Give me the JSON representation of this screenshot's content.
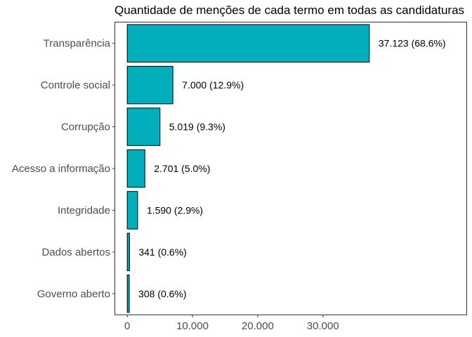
{
  "chart_data": {
    "type": "bar",
    "orientation": "horizontal",
    "title": "Quantidade de menções de cada termo em todas as candidaturas",
    "xlabel": "",
    "ylabel": "",
    "categories": [
      "Transparência",
      "Controle social",
      "Corrupção",
      "Acesso a informação",
      "Integridade",
      "Dados abertos",
      "Governo aberto"
    ],
    "values": [
      37123,
      7000,
      5019,
      2701,
      1590,
      341,
      308
    ],
    "data_labels": [
      "37.123 (68.6%)",
      "7.000 (12.9%)",
      "5.019 (9.3%)",
      "2.701 (5.0%)",
      "1.590 (2.9%)",
      "341 (0.6%)",
      "308 (0.6%)"
    ],
    "x_ticks": [
      0,
      10000,
      20000,
      30000
    ],
    "x_tick_labels": [
      "0",
      "10.000",
      "20.000",
      "30.000"
    ],
    "xlim": [
      -1850,
      52000
    ],
    "grid": false,
    "bar_color": "#00AFBB",
    "bar_outline": "#000000"
  }
}
